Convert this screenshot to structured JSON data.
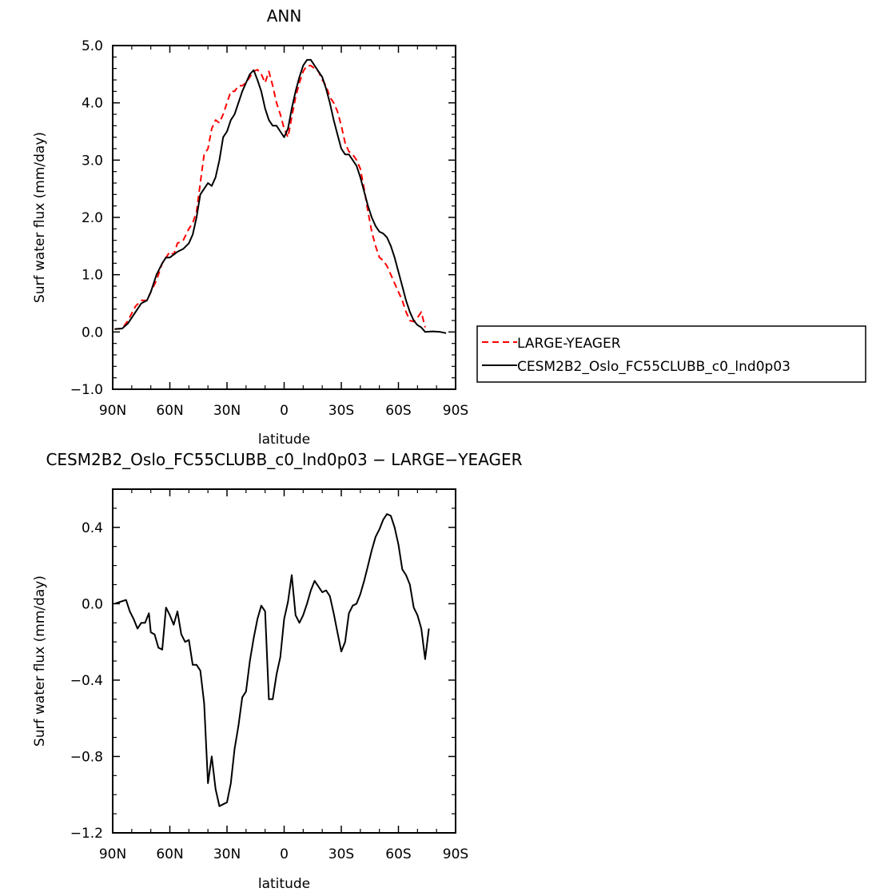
{
  "chart_data": [
    {
      "type": "line",
      "title": "ANN",
      "xlabel": "latitude",
      "ylabel": "Surf water flux (mm/day)",
      "xlim": [
        90,
        -90
      ],
      "ylim": [
        -1.0,
        5.0
      ],
      "x_ticks": [
        90,
        60,
        30,
        0,
        -30,
        -60,
        -90
      ],
      "x_tick_labels": [
        "90N",
        "60N",
        "30N",
        "0",
        "30S",
        "60S",
        "90S"
      ],
      "y_ticks": [
        -1.0,
        0.0,
        1.0,
        2.0,
        3.0,
        4.0,
        5.0
      ],
      "y_tick_labels": [
        "−1.0",
        "0.0",
        "1.0",
        "2.0",
        "3.0",
        "4.0",
        "5.0"
      ],
      "legend_position": "right",
      "series": [
        {
          "name": "LARGE-YEAGER",
          "color": "#ff0000",
          "dash": "dashed",
          "points": [
            [
              89,
              0.05
            ],
            [
              85,
              0.06
            ],
            [
              82,
              0.2
            ],
            [
              78,
              0.45
            ],
            [
              75,
              0.55
            ],
            [
              72,
              0.55
            ],
            [
              70,
              0.7
            ],
            [
              67,
              0.9
            ],
            [
              64,
              1.2
            ],
            [
              62,
              1.3
            ],
            [
              60,
              1.4
            ],
            [
              58,
              1.35
            ],
            [
              56,
              1.55
            ],
            [
              53,
              1.6
            ],
            [
              50,
              1.8
            ],
            [
              48,
              1.9
            ],
            [
              46,
              2.1
            ],
            [
              44,
              2.6
            ],
            [
              42,
              3.1
            ],
            [
              40,
              3.2
            ],
            [
              38,
              3.55
            ],
            [
              36,
              3.7
            ],
            [
              34,
              3.65
            ],
            [
              32,
              3.8
            ],
            [
              30,
              4.0
            ],
            [
              28,
              4.2
            ],
            [
              26,
              4.2
            ],
            [
              24,
              4.3
            ],
            [
              22,
              4.3
            ],
            [
              20,
              4.35
            ],
            [
              18,
              4.45
            ],
            [
              16,
              4.55
            ],
            [
              14,
              4.58
            ],
            [
              12,
              4.5
            ],
            [
              10,
              4.35
            ],
            [
              8,
              4.55
            ],
            [
              6,
              4.3
            ],
            [
              4,
              4.0
            ],
            [
              2,
              3.8
            ],
            [
              0,
              3.55
            ],
            [
              -2,
              3.4
            ],
            [
              -4,
              3.75
            ],
            [
              -6,
              4.1
            ],
            [
              -8,
              4.35
            ],
            [
              -10,
              4.55
            ],
            [
              -12,
              4.65
            ],
            [
              -14,
              4.65
            ],
            [
              -16,
              4.6
            ],
            [
              -18,
              4.55
            ],
            [
              -20,
              4.4
            ],
            [
              -22,
              4.3
            ],
            [
              -24,
              4.1
            ],
            [
              -26,
              4.0
            ],
            [
              -28,
              3.85
            ],
            [
              -30,
              3.6
            ],
            [
              -32,
              3.3
            ],
            [
              -34,
              3.15
            ],
            [
              -36,
              3.1
            ],
            [
              -38,
              3.0
            ],
            [
              -40,
              2.85
            ],
            [
              -42,
              2.5
            ],
            [
              -44,
              2.1
            ],
            [
              -46,
              1.75
            ],
            [
              -48,
              1.5
            ],
            [
              -50,
              1.3
            ],
            [
              -52,
              1.25
            ],
            [
              -54,
              1.15
            ],
            [
              -56,
              1.0
            ],
            [
              -58,
              0.85
            ],
            [
              -60,
              0.7
            ],
            [
              -62,
              0.55
            ],
            [
              -64,
              0.35
            ],
            [
              -66,
              0.2
            ],
            [
              -68,
              0.18
            ],
            [
              -70,
              0.25
            ],
            [
              -72,
              0.35
            ],
            [
              -74,
              0.08
            ]
          ]
        },
        {
          "name": "CESM2B2_Oslo_FC55CLUBB_c0_lnd0p03",
          "color": "#000000",
          "dash": "solid",
          "points": [
            [
              89,
              0.05
            ],
            [
              85,
              0.06
            ],
            [
              82,
              0.15
            ],
            [
              78,
              0.35
            ],
            [
              75,
              0.5
            ],
            [
              72,
              0.55
            ],
            [
              70,
              0.7
            ],
            [
              67,
              1.0
            ],
            [
              64,
              1.2
            ],
            [
              62,
              1.3
            ],
            [
              60,
              1.3
            ],
            [
              58,
              1.35
            ],
            [
              56,
              1.4
            ],
            [
              53,
              1.45
            ],
            [
              50,
              1.55
            ],
            [
              48,
              1.7
            ],
            [
              46,
              2.0
            ],
            [
              44,
              2.4
            ],
            [
              42,
              2.5
            ],
            [
              40,
              2.6
            ],
            [
              38,
              2.55
            ],
            [
              36,
              2.7
            ],
            [
              34,
              3.0
            ],
            [
              32,
              3.4
            ],
            [
              30,
              3.5
            ],
            [
              28,
              3.7
            ],
            [
              26,
              3.8
            ],
            [
              24,
              4.0
            ],
            [
              22,
              4.2
            ],
            [
              20,
              4.35
            ],
            [
              18,
              4.5
            ],
            [
              16,
              4.57
            ],
            [
              14,
              4.4
            ],
            [
              12,
              4.2
            ],
            [
              10,
              3.9
            ],
            [
              8,
              3.7
            ],
            [
              6,
              3.6
            ],
            [
              4,
              3.6
            ],
            [
              2,
              3.5
            ],
            [
              0,
              3.4
            ],
            [
              -2,
              3.55
            ],
            [
              -4,
              3.9
            ],
            [
              -6,
              4.2
            ],
            [
              -8,
              4.45
            ],
            [
              -10,
              4.65
            ],
            [
              -12,
              4.75
            ],
            [
              -14,
              4.75
            ],
            [
              -16,
              4.65
            ],
            [
              -18,
              4.55
            ],
            [
              -20,
              4.45
            ],
            [
              -22,
              4.25
            ],
            [
              -24,
              4.0
            ],
            [
              -26,
              3.7
            ],
            [
              -28,
              3.45
            ],
            [
              -30,
              3.2
            ],
            [
              -32,
              3.1
            ],
            [
              -34,
              3.1
            ],
            [
              -36,
              3.0
            ],
            [
              -38,
              2.9
            ],
            [
              -40,
              2.7
            ],
            [
              -42,
              2.45
            ],
            [
              -44,
              2.2
            ],
            [
              -46,
              2.0
            ],
            [
              -48,
              1.85
            ],
            [
              -50,
              1.75
            ],
            [
              -52,
              1.72
            ],
            [
              -54,
              1.65
            ],
            [
              -56,
              1.5
            ],
            [
              -58,
              1.3
            ],
            [
              -60,
              1.05
            ],
            [
              -62,
              0.8
            ],
            [
              -64,
              0.55
            ],
            [
              -66,
              0.35
            ],
            [
              -68,
              0.2
            ],
            [
              -70,
              0.12
            ],
            [
              -72,
              0.08
            ],
            [
              -74,
              0.0
            ],
            [
              -78,
              0.01
            ],
            [
              -82,
              0.0
            ],
            [
              -85,
              -0.02
            ]
          ]
        }
      ]
    },
    {
      "type": "line",
      "title": "CESM2B2_Oslo_FC55CLUBB_c0_lnd0p03 − LARGE−YEAGER",
      "xlabel": "latitude",
      "ylabel": "Surf water flux (mm/day)",
      "xlim": [
        90,
        -90
      ],
      "ylim": [
        -1.2,
        0.6
      ],
      "x_ticks": [
        90,
        60,
        30,
        0,
        -30,
        -60,
        -90
      ],
      "x_tick_labels": [
        "90N",
        "60N",
        "30N",
        "0",
        "30S",
        "60S",
        "90S"
      ],
      "y_ticks": [
        -1.2,
        -0.8,
        -0.4,
        0.0,
        0.4
      ],
      "y_tick_labels": [
        "−1.2",
        "−0.8",
        "−0.4",
        "0.0",
        "0.4"
      ],
      "series": [
        {
          "name": "",
          "color": "#000000",
          "dash": "solid",
          "points": [
            [
              89,
              0.0
            ],
            [
              86,
              0.01
            ],
            [
              83,
              0.02
            ],
            [
              81,
              -0.04
            ],
            [
              79,
              -0.08
            ],
            [
              77,
              -0.13
            ],
            [
              75,
              -0.1
            ],
            [
              73,
              -0.1
            ],
            [
              71,
              -0.05
            ],
            [
              70,
              -0.15
            ],
            [
              68,
              -0.16
            ],
            [
              66,
              -0.23
            ],
            [
              64,
              -0.24
            ],
            [
              62,
              -0.02
            ],
            [
              60,
              -0.06
            ],
            [
              58,
              -0.11
            ],
            [
              56,
              -0.04
            ],
            [
              54,
              -0.16
            ],
            [
              52,
              -0.2
            ],
            [
              50,
              -0.19
            ],
            [
              48,
              -0.32
            ],
            [
              46,
              -0.32
            ],
            [
              44,
              -0.35
            ],
            [
              42,
              -0.52
            ],
            [
              40,
              -0.94
            ],
            [
              38,
              -0.8
            ],
            [
              36,
              -0.97
            ],
            [
              34,
              -1.06
            ],
            [
              32,
              -1.05
            ],
            [
              30,
              -1.04
            ],
            [
              28,
              -0.94
            ],
            [
              26,
              -0.76
            ],
            [
              24,
              -0.64
            ],
            [
              22,
              -0.49
            ],
            [
              20,
              -0.46
            ],
            [
              18,
              -0.3
            ],
            [
              16,
              -0.18
            ],
            [
              14,
              -0.08
            ],
            [
              12,
              -0.01
            ],
            [
              10,
              -0.04
            ],
            [
              8,
              -0.5
            ],
            [
              6,
              -0.5
            ],
            [
              4,
              -0.37
            ],
            [
              2,
              -0.28
            ],
            [
              0,
              -0.08
            ],
            [
              -2,
              0.01
            ],
            [
              -4,
              0.15
            ],
            [
              -6,
              -0.06
            ],
            [
              -8,
              -0.1
            ],
            [
              -10,
              -0.06
            ],
            [
              -12,
              0.0
            ],
            [
              -14,
              0.07
            ],
            [
              -16,
              0.12
            ],
            [
              -18,
              0.09
            ],
            [
              -20,
              0.06
            ],
            [
              -22,
              0.07
            ],
            [
              -24,
              0.04
            ],
            [
              -26,
              -0.05
            ],
            [
              -28,
              -0.15
            ],
            [
              -30,
              -0.25
            ],
            [
              -32,
              -0.2
            ],
            [
              -34,
              -0.05
            ],
            [
              -36,
              -0.01
            ],
            [
              -38,
              0.0
            ],
            [
              -40,
              0.05
            ],
            [
              -42,
              0.12
            ],
            [
              -44,
              0.2
            ],
            [
              -46,
              0.28
            ],
            [
              -48,
              0.35
            ],
            [
              -50,
              0.39
            ],
            [
              -52,
              0.44
            ],
            [
              -54,
              0.47
            ],
            [
              -56,
              0.46
            ],
            [
              -58,
              0.4
            ],
            [
              -60,
              0.31
            ],
            [
              -62,
              0.18
            ],
            [
              -64,
              0.15
            ],
            [
              -66,
              0.1
            ],
            [
              -68,
              -0.02
            ],
            [
              -70,
              -0.06
            ],
            [
              -72,
              -0.13
            ],
            [
              -74,
              -0.29
            ],
            [
              -76,
              -0.13
            ]
          ]
        }
      ]
    }
  ]
}
